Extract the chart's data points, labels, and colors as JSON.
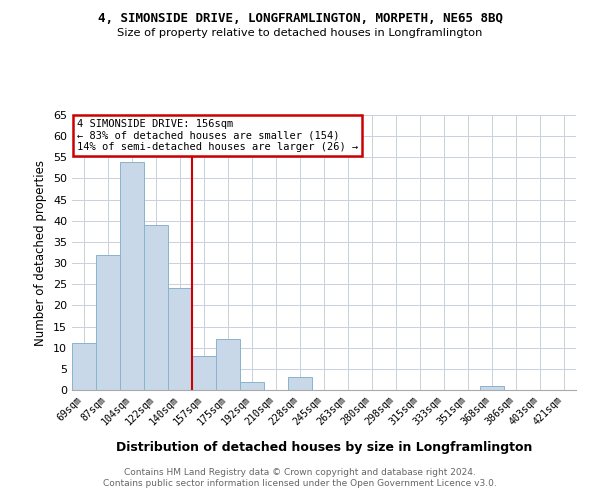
{
  "title": "4, SIMONSIDE DRIVE, LONGFRAMLINGTON, MORPETH, NE65 8BQ",
  "subtitle": "Size of property relative to detached houses in Longframlington",
  "xlabel": "Distribution of detached houses by size in Longframlington",
  "ylabel": "Number of detached properties",
  "categories": [
    "69sqm",
    "87sqm",
    "104sqm",
    "122sqm",
    "140sqm",
    "157sqm",
    "175sqm",
    "192sqm",
    "210sqm",
    "228sqm",
    "245sqm",
    "263sqm",
    "280sqm",
    "298sqm",
    "315sqm",
    "333sqm",
    "351sqm",
    "368sqm",
    "386sqm",
    "403sqm",
    "421sqm"
  ],
  "values": [
    11,
    32,
    54,
    39,
    24,
    8,
    12,
    2,
    0,
    3,
    0,
    0,
    0,
    0,
    0,
    0,
    0,
    1,
    0,
    0,
    0
  ],
  "bar_color": "#c8d8e8",
  "bar_edge_color": "#8ab4cc",
  "vline_x": 4.5,
  "vline_color": "#cc0000",
  "annotation_line1": "4 SIMONSIDE DRIVE: 156sqm",
  "annotation_line2": "← 83% of detached houses are smaller (154)",
  "annotation_line3": "14% of semi-detached houses are larger (26) →",
  "annotation_color": "#cc0000",
  "ylim": [
    0,
    65
  ],
  "yticks": [
    0,
    5,
    10,
    15,
    20,
    25,
    30,
    35,
    40,
    45,
    50,
    55,
    60,
    65
  ],
  "footer_line1": "Contains HM Land Registry data © Crown copyright and database right 2024.",
  "footer_line2": "Contains public sector information licensed under the Open Government Licence v3.0.",
  "bg_color": "#ffffff",
  "grid_color": "#c8d0dc"
}
